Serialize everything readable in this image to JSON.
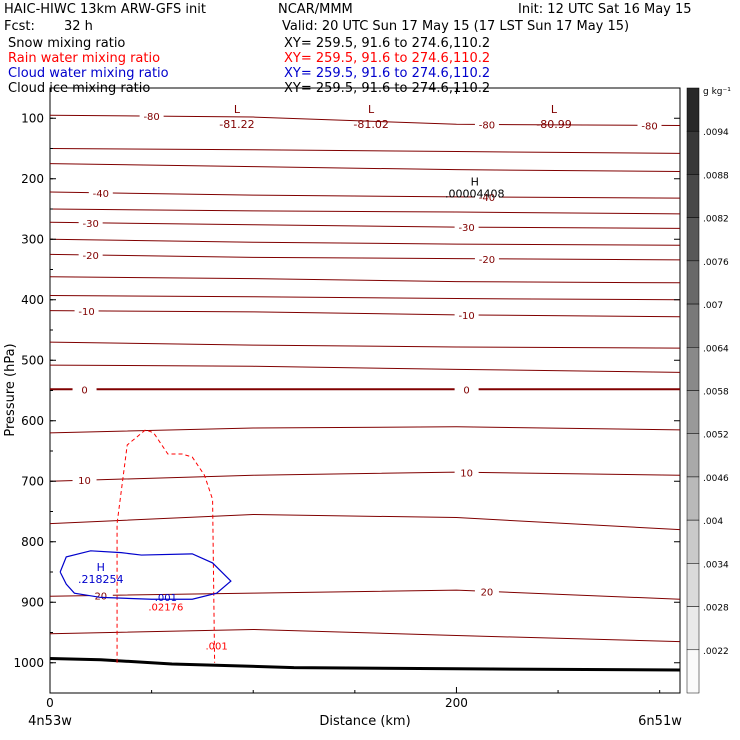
{
  "header": {
    "model": "HAIC-HIWC 13km ARW-GFS init",
    "org": "NCAR/MMM",
    "init": "Init: 12 UTC Sat 16 May 15",
    "fcst_label": "Fcst:",
    "fcst_value": "32 h",
    "valid": "Valid: 20 UTC Sun 17 May 15 (17 LST Sun 17 May 15)"
  },
  "legend": [
    {
      "name": "Snow mixing ratio",
      "xy": "XY= 259.5, 91.6 to 274.6,110.2",
      "color": "#000000"
    },
    {
      "name": "Rain water mixing ratio",
      "xy": "XY= 259.5, 91.6 to 274.6,110.2",
      "color": "#ff0000"
    },
    {
      "name": "Cloud water mixing ratio",
      "xy": "XY= 259.5, 91.6 to 274.6,110.2",
      "color": "#0000cc"
    },
    {
      "name": "Cloud ice mixing ratio",
      "xy": "XY= 259.5, 91.6 to 274.6,110.2",
      "color": "#000000"
    }
  ],
  "chart_data": {
    "type": "cross-section",
    "xlabel": "Distance (km)",
    "ylabel": "Pressure (hPa)",
    "xlim": [
      0,
      310
    ],
    "ylim": [
      50,
      1050
    ],
    "x_ticks": [
      "0",
      "200"
    ],
    "y_ticks": [
      "100",
      "200",
      "300",
      "400",
      "500",
      "600",
      "700",
      "800",
      "900",
      "1000"
    ],
    "left_endpoint": "4n53w",
    "right_endpoint": "6n51w",
    "temperature_isotherms": [
      {
        "label": "-80",
        "y": [
          95,
          98,
          110,
          112
        ],
        "labels_at": [
          50,
          215,
          295
        ]
      },
      {
        "label": "-40",
        "y": [
          222,
          227,
          230,
          232
        ],
        "labels_at": [
          25,
          215
        ]
      },
      {
        "label": "-30",
        "y": [
          272,
          276,
          280,
          282
        ],
        "labels_at": [
          20,
          205
        ]
      },
      {
        "label": "-20",
        "y": [
          325,
          330,
          332,
          334
        ],
        "labels_at": [
          20,
          215
        ]
      },
      {
        "label": "-10",
        "y": [
          418,
          420,
          425,
          428
        ],
        "labels_at": [
          18,
          205
        ]
      },
      {
        "label": "0",
        "y": [
          548,
          548,
          548,
          548
        ],
        "labels_at": [
          17,
          205
        ]
      },
      {
        "label": "10",
        "y": [
          700,
          690,
          685,
          690
        ],
        "labels_at": [
          17,
          205
        ]
      },
      {
        "label": "20",
        "y": [
          890,
          885,
          880,
          895
        ],
        "labels_at": [
          25,
          215
        ]
      }
    ],
    "extrema": [
      {
        "kind": "L",
        "value": "-81.22",
        "x": 92
      },
      {
        "kind": "L",
        "value": "-81.02",
        "x": 158
      },
      {
        "kind": "L",
        "value": "-80.99",
        "x": 248
      },
      {
        "kind": "H",
        "value": ".00004408",
        "x": 209,
        "p": 218
      },
      {
        "kind": "H",
        "value": ".218254",
        "x": 25,
        "p": 855
      }
    ],
    "rain_contour_labels": [
      ".02176",
      ".001"
    ],
    "cloud_contour_labels": [
      ".001"
    ],
    "colorbar": {
      "unit": "g kg⁻¹",
      "labels": [
        ".0094",
        ".0088",
        ".0082",
        ".0076",
        ".007",
        ".0064",
        ".0058",
        ".0052",
        ".0046",
        ".004",
        ".0034",
        ".0028",
        ".0022"
      ]
    }
  }
}
